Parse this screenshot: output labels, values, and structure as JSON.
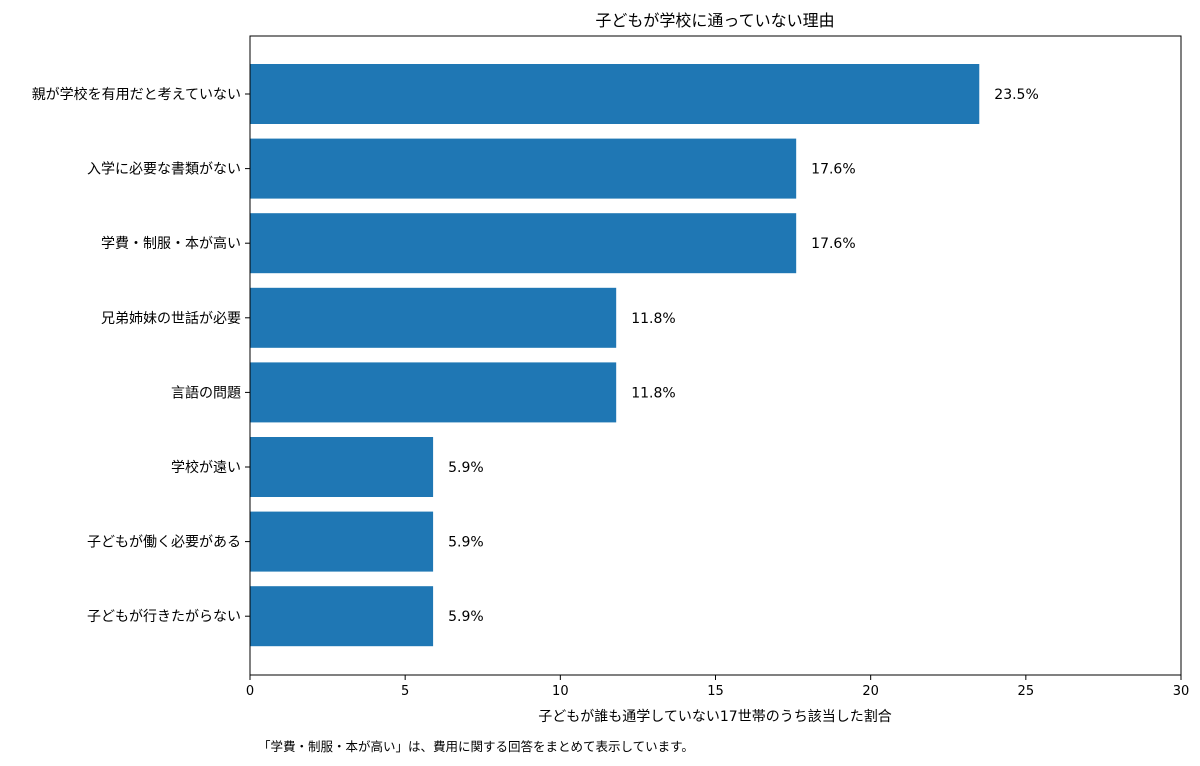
{
  "chart_data": {
    "type": "bar",
    "orientation": "horizontal",
    "title": "子どもが学校に通っていない理由",
    "xlabel": "子どもが誰も通学していない17世帯のうち該当した割合",
    "ylabel": "",
    "xlim": [
      0,
      30
    ],
    "xticks": [
      0,
      5,
      10,
      15,
      20,
      25,
      30
    ],
    "grid": false,
    "bar_color": "#1f77b4",
    "categories": [
      "親が学校を有用だと考えていない",
      "入学に必要な書類がない",
      "学費・制服・本が高い",
      "兄弟姉妹の世話が必要",
      "言語の問題",
      "学校が遠い",
      "子どもが働く必要がある",
      "子どもが行きたがらない"
    ],
    "values": [
      23.5,
      17.6,
      17.6,
      11.8,
      11.8,
      5.9,
      5.9,
      5.9
    ],
    "data_labels": [
      "23.5%",
      "17.6%",
      "17.6%",
      "11.8%",
      "11.8%",
      "5.9%",
      "5.9%",
      "5.9%"
    ]
  },
  "footnote": "「学費・制服・本が高い」は、費用に関する回答をまとめて表示しています。"
}
